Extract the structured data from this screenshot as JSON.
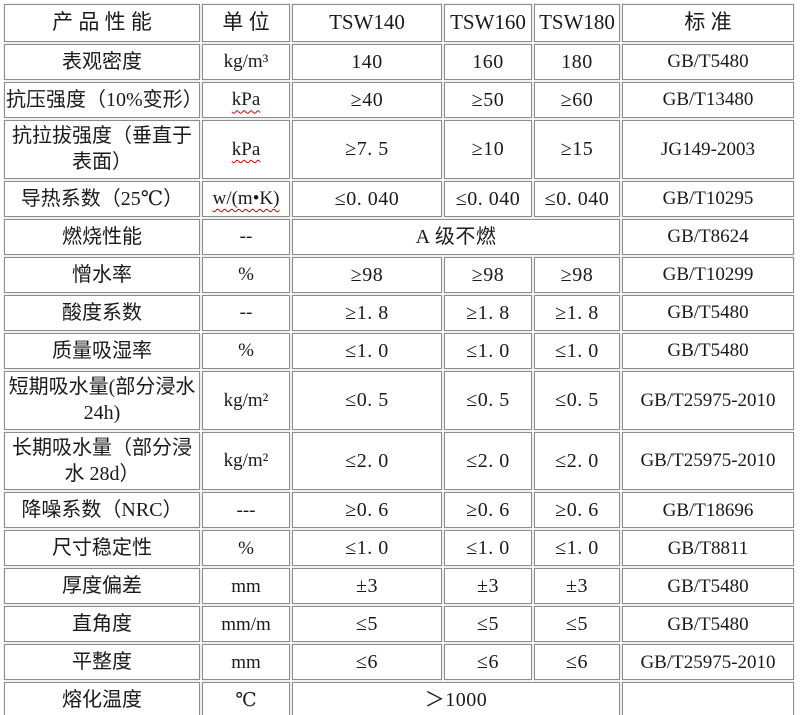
{
  "colors": {
    "border": "#8c8c8c",
    "background": "#ffffff",
    "text": "#1a1a1a",
    "spellcheck_underline": "#cc0000"
  },
  "table": {
    "columns": [
      "产 品 性 能",
      "单 位",
      "TSW140",
      "TSW160",
      "TSW180",
      "标 准"
    ],
    "rows": [
      {
        "property": "表观密度",
        "unit": "kg/m³",
        "unit_wavy": false,
        "values": [
          "140",
          "160",
          "180"
        ],
        "standard": "GB/T5480"
      },
      {
        "property": "抗压强度（10%变形）",
        "unit": "kPa",
        "unit_wavy": true,
        "values": [
          "≥40",
          "≥50",
          "≥60"
        ],
        "standard": "GB/T13480"
      },
      {
        "property": "抗拉拔强度（垂直于表面）",
        "unit": "kPa",
        "unit_wavy": true,
        "values": [
          "≥7. 5",
          "≥10",
          "≥15"
        ],
        "standard": "JG149-2003"
      },
      {
        "property": "导热系数（25℃）",
        "unit": "w/(m•K)",
        "unit_wavy": true,
        "values": [
          "≤0. 040",
          "≤0. 040",
          "≤0. 040"
        ],
        "standard": "GB/T10295"
      },
      {
        "property": "燃烧性能",
        "unit": "--",
        "unit_wavy": false,
        "merged_value": "A 级不燃",
        "standard": "GB/T8624"
      },
      {
        "property": "憎水率",
        "unit": "%",
        "unit_wavy": false,
        "values": [
          "≥98",
          "≥98",
          "≥98"
        ],
        "standard": "GB/T10299"
      },
      {
        "property": "酸度系数",
        "unit": "--",
        "unit_wavy": false,
        "values": [
          "≥1. 8",
          "≥1. 8",
          "≥1. 8"
        ],
        "standard": "GB/T5480"
      },
      {
        "property": "质量吸湿率",
        "unit": "%",
        "unit_wavy": false,
        "values": [
          "≤1. 0",
          "≤1. 0",
          "≤1. 0"
        ],
        "standard": "GB/T5480"
      },
      {
        "property": "短期吸水量(部分浸水 24h)",
        "unit": "kg/m²",
        "unit_wavy": false,
        "values": [
          "≤0. 5",
          "≤0. 5",
          "≤0. 5"
        ],
        "standard": "GB/T25975-2010"
      },
      {
        "property": "长期吸水量（部分浸水 28d）",
        "unit": "kg/m²",
        "unit_wavy": false,
        "values": [
          "≤2. 0",
          "≤2. 0",
          "≤2. 0"
        ],
        "standard": "GB/T25975-2010"
      },
      {
        "property": "降噪系数（NRC）",
        "unit": "---",
        "unit_wavy": false,
        "values": [
          "≥0. 6",
          "≥0. 6",
          "≥0. 6"
        ],
        "standard": "GB/T18696"
      },
      {
        "property": "尺寸稳定性",
        "unit": "%",
        "unit_wavy": false,
        "values": [
          "≤1. 0",
          "≤1. 0",
          "≤1. 0"
        ],
        "standard": "GB/T8811"
      },
      {
        "property": "厚度偏差",
        "unit": "mm",
        "unit_wavy": false,
        "values": [
          "±3",
          "±3",
          "±3"
        ],
        "standard": "GB/T5480"
      },
      {
        "property": "直角度",
        "unit": "mm/m",
        "unit_wavy": false,
        "values": [
          "≤5",
          "≤5",
          "≤5"
        ],
        "standard": "GB/T5480"
      },
      {
        "property": "平整度",
        "unit": "mm",
        "unit_wavy": false,
        "values": [
          "≤6",
          "≤6",
          "≤6"
        ],
        "standard": "GB/T25975-2010"
      },
      {
        "property": "熔化温度",
        "unit": "℃",
        "unit_wavy": false,
        "merged_value": "＞1000",
        "standard": ""
      }
    ]
  }
}
